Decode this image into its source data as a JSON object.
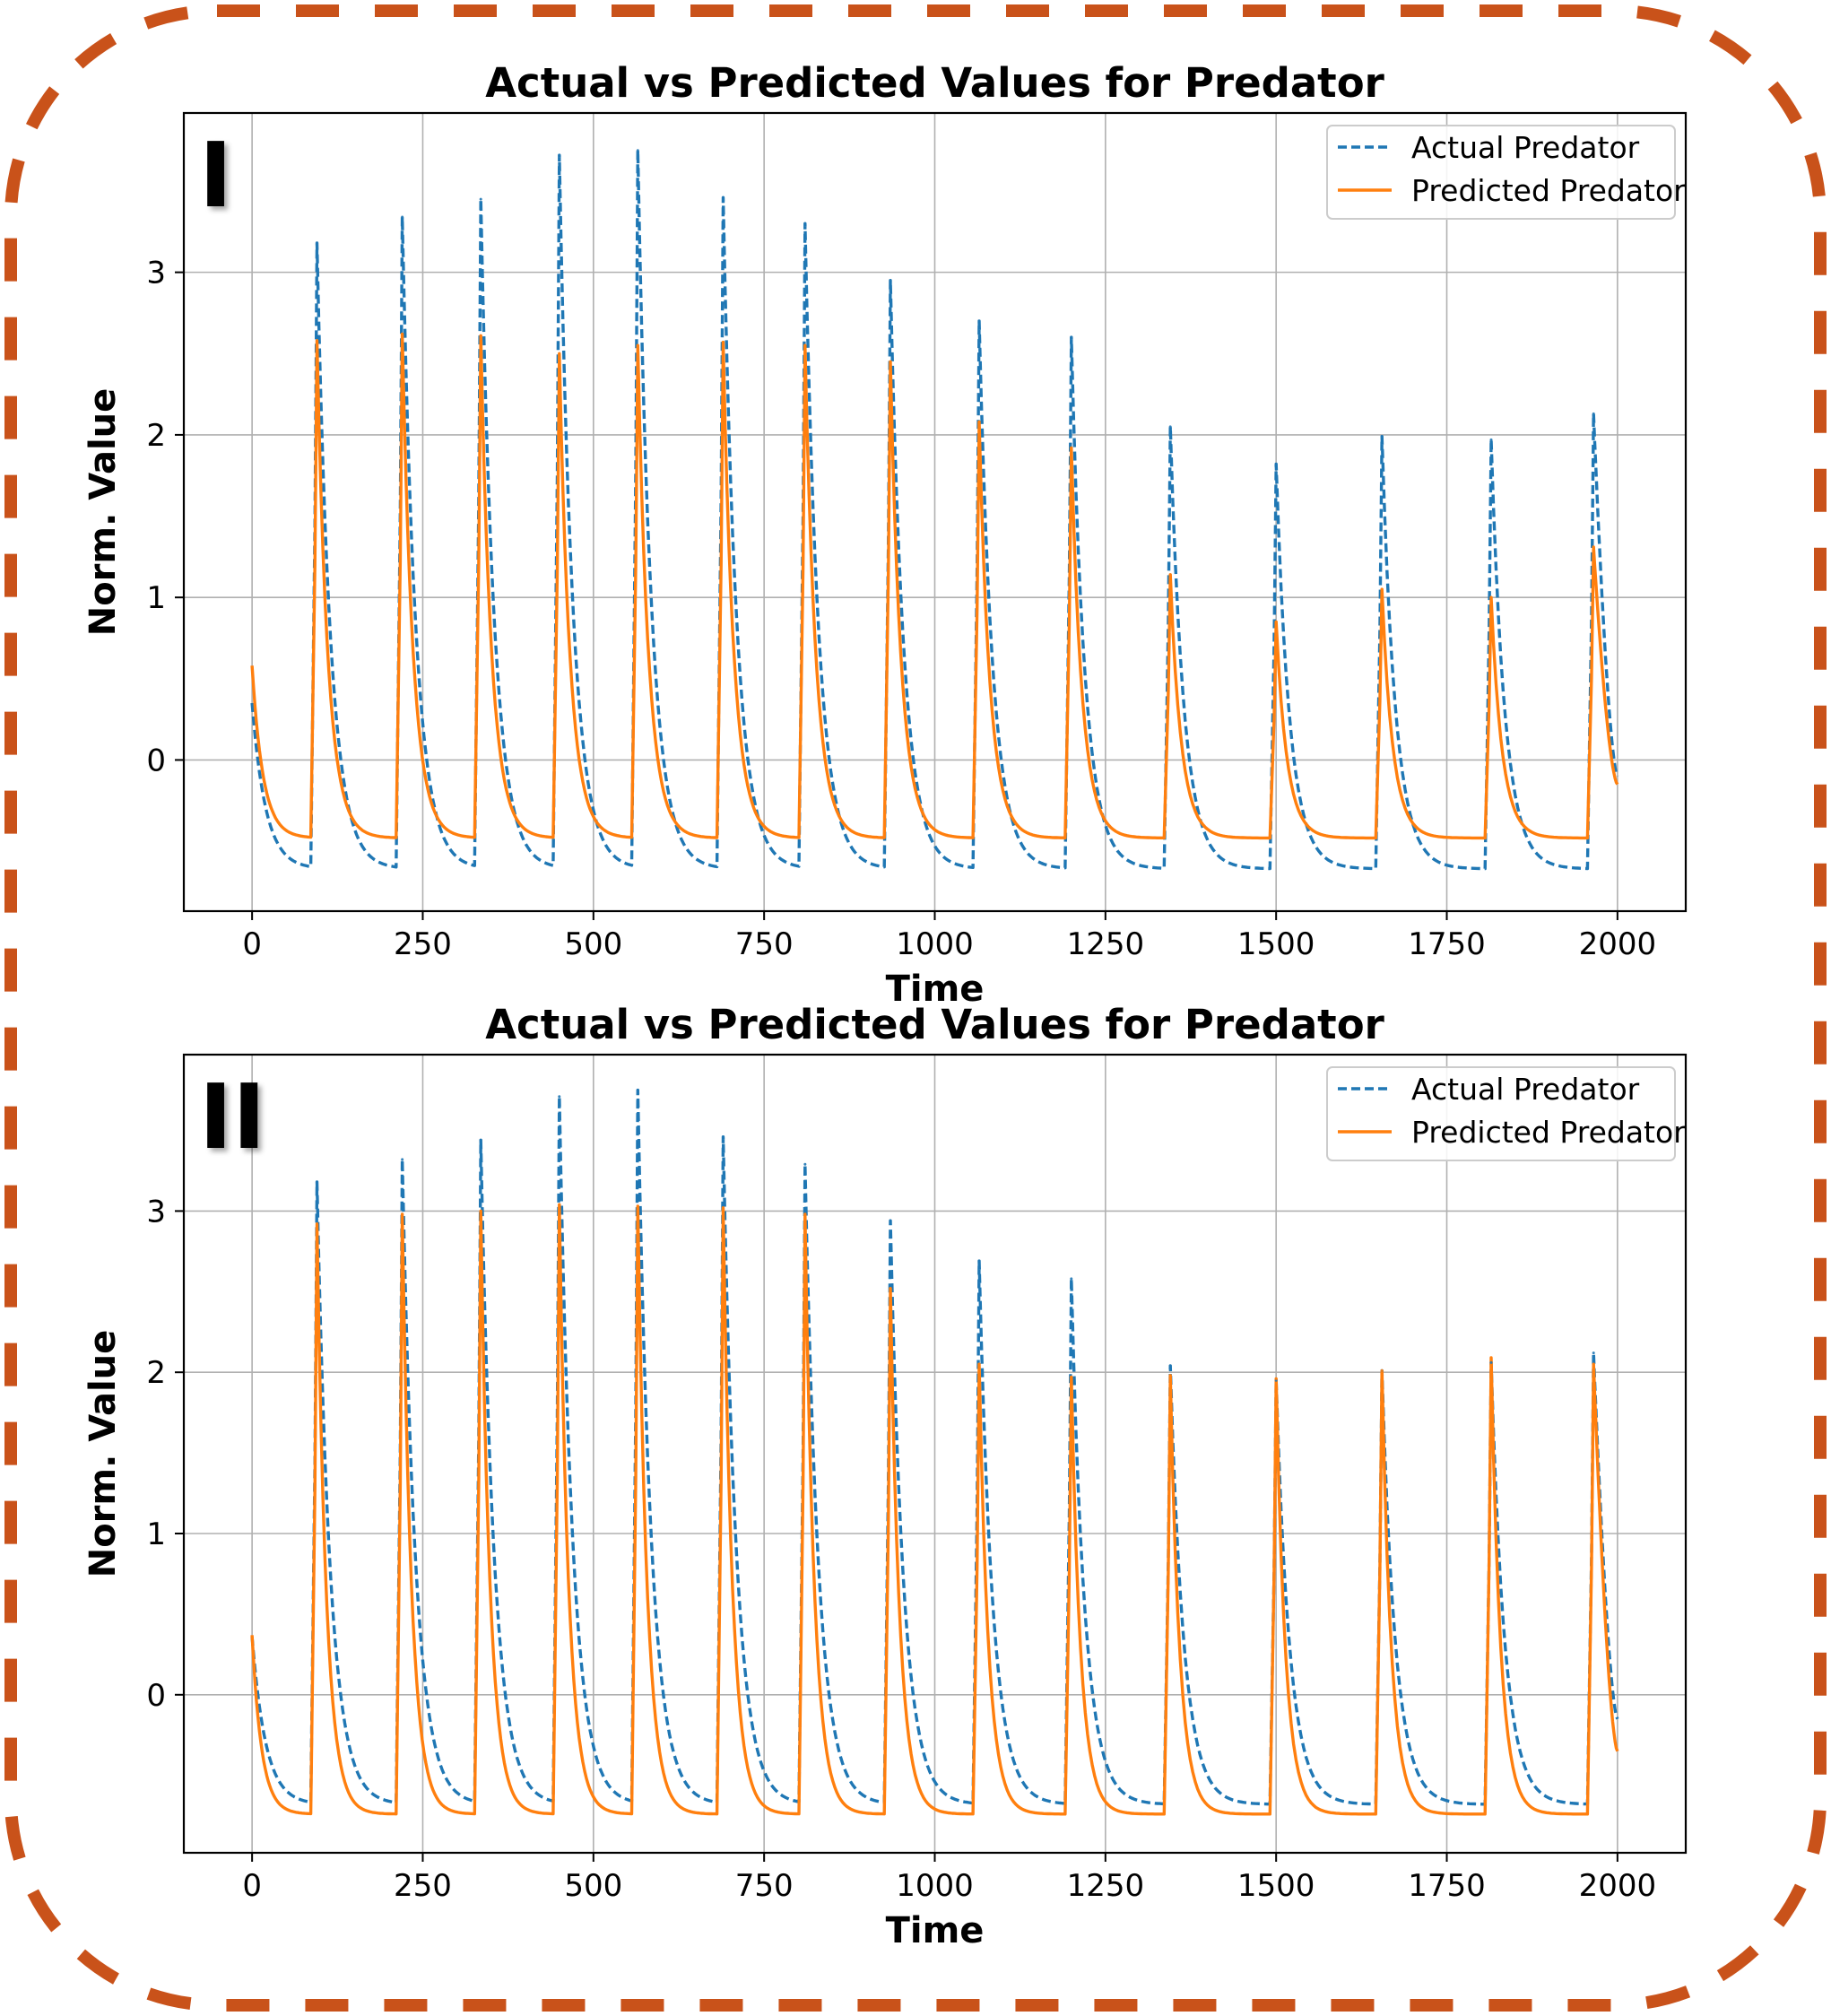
{
  "chart_data": [
    {
      "type": "line",
      "panel_label": "I",
      "title": "Actual vs Predicted Values for Predator",
      "xlabel": "Time",
      "ylabel": "Norm. Value",
      "xlim": [
        -100,
        2100
      ],
      "ylim": [
        -0.93,
        3.98
      ],
      "xticks": [
        0,
        250,
        500,
        750,
        1000,
        1250,
        1500,
        1750,
        2000
      ],
      "yticks": [
        0,
        1,
        2,
        3
      ],
      "grid": true,
      "legend": "top-right",
      "peaks": [
        {
          "time": 95,
          "actual": 3.18,
          "predicted": 2.58
        },
        {
          "time": 220,
          "actual": 3.34,
          "predicted": 2.62
        },
        {
          "time": 335,
          "actual": 3.45,
          "predicted": 2.61
        },
        {
          "time": 450,
          "actual": 3.72,
          "predicted": 2.5
        },
        {
          "time": 565,
          "actual": 3.75,
          "predicted": 2.55
        },
        {
          "time": 690,
          "actual": 3.46,
          "predicted": 2.57
        },
        {
          "time": 810,
          "actual": 3.3,
          "predicted": 2.55
        },
        {
          "time": 935,
          "actual": 2.95,
          "predicted": 2.45
        },
        {
          "time": 1065,
          "actual": 2.7,
          "predicted": 2.08
        },
        {
          "time": 1200,
          "actual": 2.6,
          "predicted": 1.92
        },
        {
          "time": 1345,
          "actual": 2.05,
          "predicted": 1.14
        },
        {
          "time": 1500,
          "actual": 1.82,
          "predicted": 0.85
        },
        {
          "time": 1655,
          "actual": 1.99,
          "predicted": 1.05
        },
        {
          "time": 1815,
          "actual": 1.97,
          "predicted": 1.0
        },
        {
          "time": 1965,
          "actual": 2.13,
          "predicted": 1.31
        }
      ],
      "series": [
        {
          "name": "Actual Predator",
          "color": "#1f77b4",
          "dash": "dashed",
          "start": 0.35,
          "end": -0.1,
          "trough_min": -0.67,
          "decay": 20
        },
        {
          "name": "Predicted Predator",
          "color": "#ff7f0e",
          "dash": "solid",
          "start": 0.58,
          "end": -0.15,
          "trough_min": -0.48,
          "decay": 16
        }
      ]
    },
    {
      "type": "line",
      "panel_label": "II",
      "title": "Actual vs Predicted Values for Predator",
      "xlabel": "Time",
      "ylabel": "Norm. Value",
      "xlim": [
        -100,
        2100
      ],
      "ylim": [
        -0.98,
        3.97
      ],
      "xticks": [
        0,
        250,
        500,
        750,
        1000,
        1250,
        1500,
        1750,
        2000
      ],
      "yticks": [
        0,
        1,
        2,
        3
      ],
      "grid": true,
      "legend": "top-right",
      "peaks": [
        {
          "time": 95,
          "actual": 3.18,
          "predicted": 2.92
        },
        {
          "time": 220,
          "actual": 3.32,
          "predicted": 2.98
        },
        {
          "time": 335,
          "actual": 3.44,
          "predicted": 3.0
        },
        {
          "time": 450,
          "actual": 3.71,
          "predicted": 3.04
        },
        {
          "time": 565,
          "actual": 3.75,
          "predicted": 3.03
        },
        {
          "time": 690,
          "actual": 3.46,
          "predicted": 3.02
        },
        {
          "time": 810,
          "actual": 3.29,
          "predicted": 2.98
        },
        {
          "time": 935,
          "actual": 2.94,
          "predicted": 2.52
        },
        {
          "time": 1065,
          "actual": 2.69,
          "predicted": 2.05
        },
        {
          "time": 1200,
          "actual": 2.58,
          "predicted": 1.97
        },
        {
          "time": 1345,
          "actual": 2.04,
          "predicted": 1.98
        },
        {
          "time": 1500,
          "actual": 1.95,
          "predicted": 1.96
        },
        {
          "time": 1655,
          "actual": 2.01,
          "predicted": 2.01
        },
        {
          "time": 1815,
          "actual": 2.06,
          "predicted": 2.09
        },
        {
          "time": 1965,
          "actual": 2.12,
          "predicted": 2.05
        }
      ],
      "series": [
        {
          "name": "Actual Predator",
          "color": "#1f77b4",
          "dash": "dashed",
          "start": 0.36,
          "end": -0.15,
          "trough_min": -0.68,
          "decay": 20
        },
        {
          "name": "Predicted Predator",
          "color": "#ff7f0e",
          "dash": "solid",
          "start": 0.37,
          "end": -0.35,
          "trough_min": -0.74,
          "decay": 14
        }
      ]
    }
  ],
  "frame": {
    "border_color": "#c9521a"
  }
}
